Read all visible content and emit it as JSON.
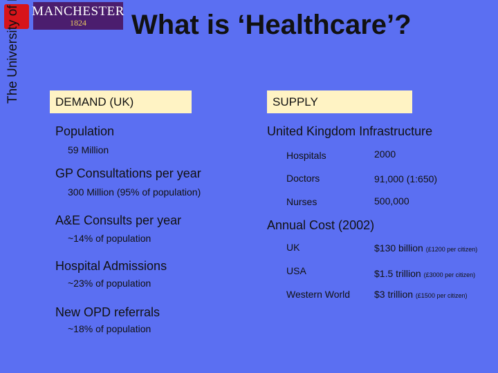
{
  "logo": {
    "brand_line1": "MANCHESTER",
    "brand_line2": "1824",
    "vertical_text": "The University of Manchester"
  },
  "title": "What is ‘Healthcare’?",
  "demand": {
    "header": "DEMAND (UK)",
    "items": [
      {
        "label": "Population",
        "value": "59 Million"
      },
      {
        "label": "GP Consultations per year",
        "value": "300 Million (95% of population)"
      },
      {
        "label": "A&E Consults per year",
        "value": "~14% of population"
      },
      {
        "label": "Hospital Admissions",
        "value": "~23% of population"
      },
      {
        "label": "New OPD referrals",
        "value": "~18% of population"
      }
    ]
  },
  "supply": {
    "header": "SUPPLY",
    "infrastructure": {
      "label": "United Kingdom Infrastructure",
      "rows": [
        {
          "name": "Hospitals",
          "value": "2000"
        },
        {
          "name": "Doctors",
          "value": "91,000 (1:650)"
        },
        {
          "name": "Nurses",
          "value": "500,000"
        }
      ]
    },
    "cost": {
      "label": "Annual Cost (2002)",
      "rows": [
        {
          "name": "UK",
          "value": "$130 billion",
          "note": "(£1200 per citizen)"
        },
        {
          "name": "USA",
          "value": "$1.5 trillion",
          "note": "(£3000 per citizen)"
        },
        {
          "name": "Western World",
          "value": "$3 trillion",
          "note": "(£1500 per citizen)"
        }
      ]
    }
  }
}
